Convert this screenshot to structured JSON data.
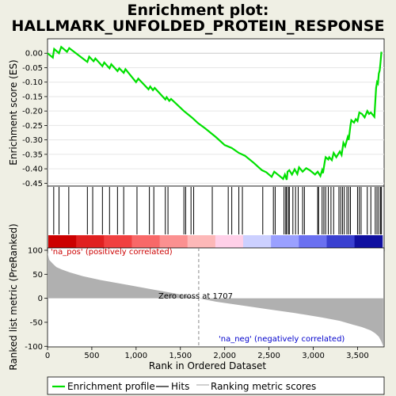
{
  "chart_data": [
    {
      "type": "line",
      "title": "Enrichment plot:",
      "subtitle": "HALLMARK_UNFOLDED_PROTEIN_RESPONSE",
      "ylabel": "Enrichment score (ES)",
      "xlim": [
        0,
        3800
      ],
      "ylim": [
        -0.46,
        0.05
      ],
      "yticks": [
        "0.00",
        "-0.05",
        "-0.10",
        "-0.15",
        "-0.20",
        "-0.25",
        "-0.30",
        "-0.35",
        "-0.40",
        "-0.45"
      ],
      "ytick_values": [
        0,
        -0.05,
        -0.1,
        -0.15,
        -0.2,
        -0.25,
        -0.3,
        -0.35,
        -0.4,
        -0.45
      ],
      "series": [
        {
          "name": "Enrichment profile",
          "color": "#00e000",
          "x": [
            0,
            60,
            75,
            130,
            155,
            220,
            245,
            450,
            470,
            520,
            540,
            620,
            640,
            700,
            720,
            790,
            810,
            860,
            880,
            1000,
            1025,
            1140,
            1160,
            1190,
            1210,
            1330,
            1345,
            1375,
            1395,
            1540,
            1600,
            1640,
            1700,
            1780,
            1900,
            2000,
            2080,
            2160,
            2230,
            2330,
            2420,
            2470,
            2530,
            2560,
            2620,
            2660,
            2680,
            2700,
            2710,
            2730,
            2760,
            2790,
            2820,
            2840,
            2880,
            2920,
            2960,
            3020,
            3050,
            3080,
            3100,
            3110,
            3130,
            3140,
            3170,
            3180,
            3210,
            3230,
            3260,
            3300,
            3320,
            3340,
            3360,
            3390,
            3400,
            3420,
            3430,
            3460,
            3480,
            3500,
            3520,
            3550,
            3580,
            3610,
            3630,
            3650,
            3690,
            3700,
            3710,
            3720,
            3730,
            3740,
            3750,
            3760,
            3770
          ],
          "y": [
            0.0,
            -0.015,
            0.015,
            0.0,
            0.022,
            0.005,
            0.018,
            -0.03,
            -0.012,
            -0.028,
            -0.018,
            -0.045,
            -0.032,
            -0.052,
            -0.038,
            -0.062,
            -0.052,
            -0.068,
            -0.055,
            -0.1,
            -0.088,
            -0.125,
            -0.115,
            -0.128,
            -0.12,
            -0.16,
            -0.152,
            -0.165,
            -0.158,
            -0.2,
            -0.215,
            -0.225,
            -0.242,
            -0.26,
            -0.29,
            -0.318,
            -0.328,
            -0.345,
            -0.355,
            -0.38,
            -0.405,
            -0.412,
            -0.428,
            -0.41,
            -0.425,
            -0.435,
            -0.42,
            -0.438,
            -0.41,
            -0.405,
            -0.42,
            -0.402,
            -0.418,
            -0.395,
            -0.41,
            -0.398,
            -0.405,
            -0.42,
            -0.41,
            -0.425,
            -0.405,
            -0.415,
            -0.375,
            -0.36,
            -0.368,
            -0.36,
            -0.37,
            -0.345,
            -0.36,
            -0.34,
            -0.352,
            -0.31,
            -0.322,
            -0.29,
            -0.3,
            -0.25,
            -0.232,
            -0.24,
            -0.228,
            -0.235,
            -0.205,
            -0.21,
            -0.222,
            -0.2,
            -0.21,
            -0.205,
            -0.22,
            -0.17,
            -0.12,
            -0.1,
            -0.105,
            -0.07,
            -0.06,
            -0.03,
            0.005
          ]
        }
      ]
    },
    {
      "type": "heatmap",
      "hit_positions": [
        70,
        130,
        240,
        450,
        510,
        620,
        700,
        790,
        860,
        1010,
        1150,
        1200,
        1330,
        1360,
        1540,
        1560,
        1620,
        1650,
        1860,
        2040,
        2080,
        2160,
        2200,
        2430,
        2550,
        2570,
        2670,
        2690,
        2700,
        2720,
        2730,
        2770,
        2800,
        2830,
        2880,
        2900,
        3050,
        3060,
        3100,
        3120,
        3140,
        3170,
        3200,
        3230,
        3290,
        3310,
        3330,
        3350,
        3380,
        3400,
        3420,
        3500,
        3520,
        3540,
        3610,
        3650,
        3700,
        3720,
        3740,
        3760,
        3770
      ],
      "color_bar": [
        "#cc0000",
        "#e02020",
        "#f04040",
        "#f86868",
        "#fb9090",
        "#fdb8b8",
        "#ffd0e8",
        "#ccd0ff",
        "#9aa0ff",
        "#6a70f0",
        "#3a40d0",
        "#1010a0"
      ]
    },
    {
      "type": "area",
      "ylabel": "Ranked list metric (PreRanked)",
      "xlabel": "Rank in Ordered Dataset",
      "xlim": [
        0,
        3800
      ],
      "ylim": [
        -100,
        100
      ],
      "yticks": [
        "100",
        "50",
        "0",
        "-50",
        "-100"
      ],
      "ytick_values": [
        100,
        50,
        0,
        -50,
        -100
      ],
      "xticks": [
        "0",
        "500",
        "1,000",
        "1,500",
        "2,000",
        "2,500",
        "3,000",
        "3,500"
      ],
      "xtick_values": [
        0,
        500,
        1000,
        1500,
        2000,
        2500,
        3000,
        3500
      ],
      "x": [
        0,
        20,
        60,
        100,
        160,
        250,
        400,
        600,
        900,
        1200,
        1500,
        1707,
        1900,
        2200,
        2500,
        2800,
        3100,
        3300,
        3450,
        3550,
        3650,
        3700,
        3740,
        3770,
        3790
      ],
      "values": [
        95,
        80,
        72,
        65,
        60,
        54,
        46,
        38,
        28,
        18,
        8,
        0,
        -7,
        -15,
        -23,
        -31,
        -40,
        -47,
        -55,
        -60,
        -67,
        -73,
        -80,
        -90,
        -100
      ],
      "fill": "#b0b0b0",
      "annotations": {
        "pos_label": "'na_pos' (positively correlated)",
        "neg_label": "'na_neg' (negatively correlated)",
        "zero_cross": "Zero cross at 1707",
        "zero_cross_x": 1707
      }
    }
  ],
  "legend": {
    "items": [
      {
        "label": "Enrichment profile",
        "color": "#00e000"
      },
      {
        "label": "Hits",
        "color": "#000000"
      },
      {
        "label": "Ranking metric scores",
        "color": "#b0b0b0"
      }
    ]
  }
}
